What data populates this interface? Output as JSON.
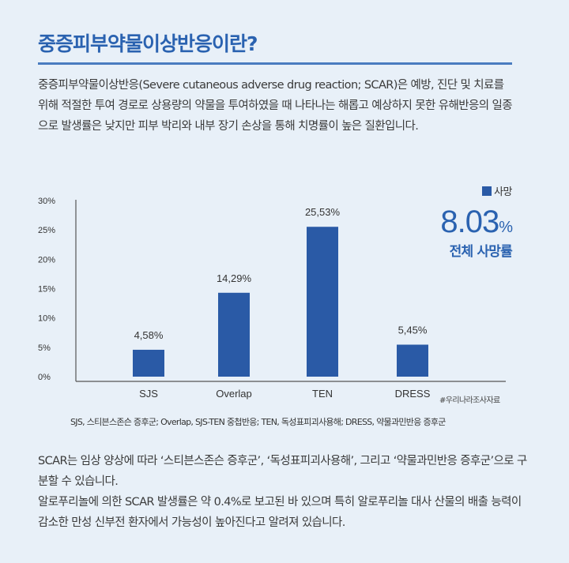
{
  "title": "중증피부약물이상반응이란?",
  "intro": "중증피부약물이상반응(Severe cutaneous adverse drug reaction; SCAR)은 예방, 진단 및 치료를 위해 적절한 투여 경로로 상용량의 약물을 투여하였을 때 나타나는 해롭고 예상하지 못한 유해반응의 일종으로 발생률은 낮지만 피부 박리와 내부 장기 손상을 통해 치명률이 높은 질환입니다.",
  "legend": {
    "label": "사망",
    "color": "#2a5aa6"
  },
  "total": {
    "value": "8.03",
    "unit": "%",
    "label": "전체 사망률"
  },
  "chart_data": {
    "type": "bar",
    "categories": [
      "SJS",
      "Overlap",
      "TEN",
      "DRESS"
    ],
    "series": [
      {
        "name": "사망",
        "values": [
          4.58,
          14.29,
          25.53,
          5.45
        ]
      }
    ],
    "data_labels": [
      "4,58%",
      "14,29%",
      "25,53%",
      "5,45%"
    ],
    "y_ticks": [
      "0%",
      "5%",
      "10%",
      "15%",
      "20%",
      "25%",
      "30%"
    ],
    "ylim": [
      0,
      30
    ],
    "legend_position": "top-right",
    "grid": false,
    "bar_color": "#2a5aa6"
  },
  "source": "#우리나라조사자료",
  "footnote": "SJS, 스티븐스존슨 증후군; Overlap, SJS-TEN 중첩반응; TEN, 독성표피괴사용해; DRESS, 약물과민반응 증후군",
  "body": [
    "SCAR는 임상 양상에 따라 ‘스티븐스존슨 증후군’, ‘독성표피괴사용해’, 그리고 ‘약물과민반응 증후군’으로 구분할 수 있습니다.",
    "알로푸리놀에 의한 SCAR 발생률은 약 0.4%로 보고된 바 있으며 특히 알로푸리놀 대사 산물의 배출 능력이 감소한 만성 신부전 환자에서 가능성이 높아진다고 알려져 있습니다."
  ]
}
